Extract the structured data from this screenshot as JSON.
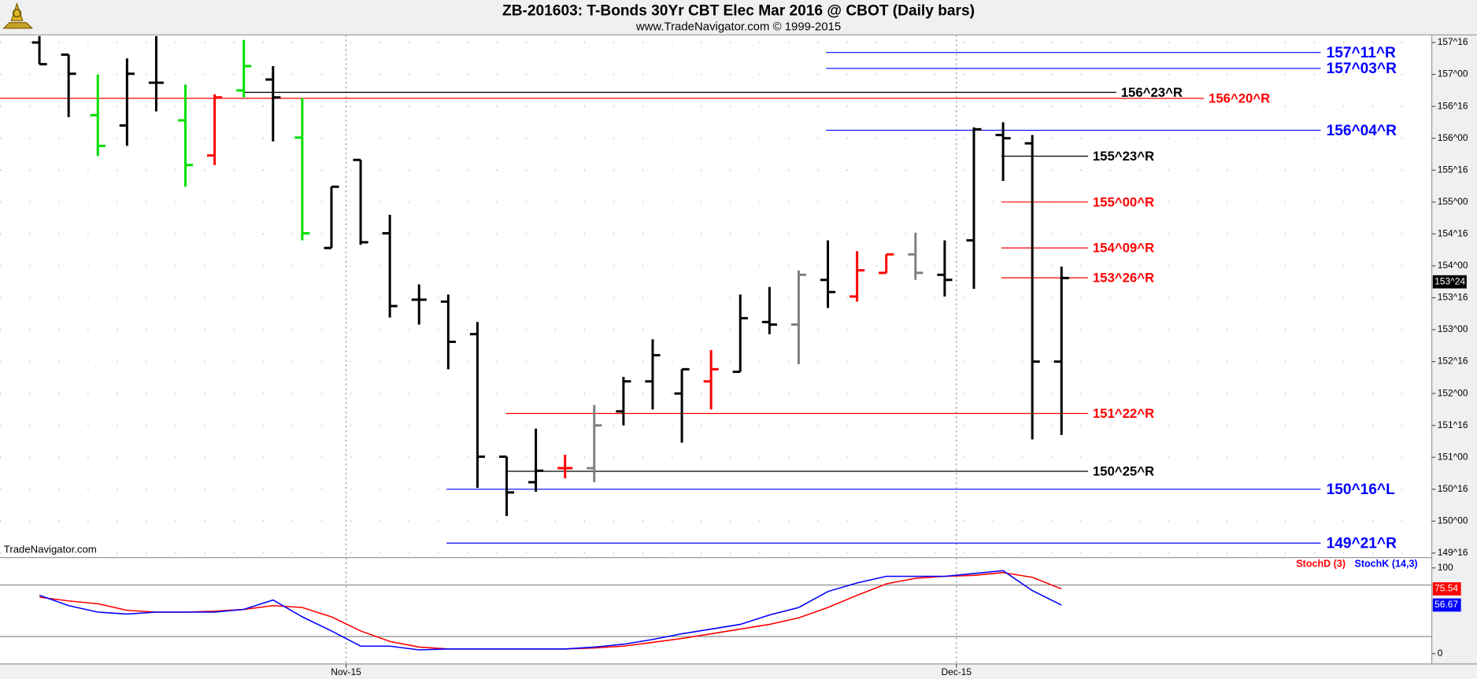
{
  "chart_data": [
    {
      "type": "ohlc",
      "title": "ZB-201603:  T-Bonds 30Yr CBT Elec Mar 2016 @ CBOT  (Daily bars)",
      "subtitle": "www.TradeNavigator.com © 1999-2015",
      "watermark": "TradeNavigator.com",
      "xlim": [
        -1.35,
        47.68
      ],
      "ylim": [
        149.43,
        157.62
      ],
      "yticks": [
        {
          "value": 149.5,
          "label": "149^16"
        },
        {
          "value": 150,
          "label": "150^00"
        },
        {
          "value": 150.5,
          "label": "150^16"
        },
        {
          "value": 151,
          "label": "151^00"
        },
        {
          "value": 151.5,
          "label": "151^16"
        },
        {
          "value": 152,
          "label": "152^00"
        },
        {
          "value": 152.5,
          "label": "152^16"
        },
        {
          "value": 153,
          "label": "153^00"
        },
        {
          "value": 153.5,
          "label": "153^16"
        },
        {
          "value": 154,
          "label": "154^00"
        },
        {
          "value": 154.5,
          "label": "154^16"
        },
        {
          "value": 155,
          "label": "155^00"
        },
        {
          "value": 155.5,
          "label": "155^16"
        },
        {
          "value": 156,
          "label": "156^00"
        },
        {
          "value": 156.5,
          "label": "156^16"
        },
        {
          "value": 157,
          "label": "157^00"
        },
        {
          "value": 157.5,
          "label": "157^16"
        }
      ],
      "grid": true,
      "open": [
        157.5,
        157.31,
        156.36,
        156.2,
        156.87,
        156.28,
        155.73,
        156.75,
        156.92,
        156.01,
        154.28,
        155.66,
        154.51,
        153.47,
        153.44,
        152.93,
        151.01,
        150.61,
        150.83,
        150.83,
        151.72,
        152.19,
        152.0,
        152.19,
        152.34,
        153.12,
        153.08,
        153.78,
        153.52,
        153.89,
        154.18,
        153.86,
        154.4,
        156.05,
        155.92,
        152.5
      ],
      "high": [
        157.6,
        157.31,
        157.0,
        157.25,
        157.6,
        156.84,
        156.69,
        157.54,
        157.13,
        156.63,
        155.24,
        155.66,
        154.8,
        153.71,
        153.55,
        153.12,
        151.01,
        151.45,
        151.04,
        151.82,
        152.26,
        152.85,
        152.38,
        152.68,
        153.55,
        153.67,
        153.93,
        154.4,
        154.23,
        154.18,
        154.52,
        154.4,
        156.17,
        156.25,
        156.05,
        153.99
      ],
      "low": [
        157.16,
        156.33,
        155.72,
        155.88,
        156.42,
        155.24,
        155.58,
        156.64,
        155.95,
        154.4,
        154.28,
        154.33,
        153.19,
        153.08,
        152.38,
        150.52,
        150.08,
        150.46,
        150.67,
        150.61,
        151.5,
        151.75,
        151.23,
        151.75,
        152.34,
        152.93,
        152.46,
        153.34,
        153.44,
        153.89,
        153.78,
        153.52,
        153.64,
        155.33,
        151.28,
        151.35
      ],
      "close": [
        157.16,
        157.01,
        155.88,
        157.01,
        156.87,
        155.58,
        156.64,
        157.13,
        156.64,
        154.51,
        155.24,
        154.37,
        153.37,
        153.47,
        152.81,
        151.01,
        150.45,
        150.79,
        150.83,
        151.5,
        152.19,
        152.6,
        152.38,
        152.38,
        153.18,
        153.08,
        153.86,
        153.59,
        153.93,
        154.18,
        153.89,
        153.78,
        156.14,
        156.0,
        152.5,
        153.81
      ],
      "colors": [
        "#000000",
        "#000000",
        "#00e000",
        "#000000",
        "#000000",
        "#00e000",
        "#ff0000",
        "#00e000",
        "#000000",
        "#00e000",
        "#000000",
        "#000000",
        "#000000",
        "#000000",
        "#000000",
        "#000000",
        "#000000",
        "#000000",
        "#ff0000",
        "#808080",
        "#000000",
        "#000000",
        "#000000",
        "#ff0000",
        "#000000",
        "#000000",
        "#808080",
        "#000000",
        "#ff0000",
        "#ff0000",
        "#808080",
        "#000000",
        "#000000",
        "#000000",
        "#000000",
        "#000000"
      ],
      "last": {
        "value": 153.75,
        "label": "153^24"
      },
      "levels": [
        {
          "value": 157.344,
          "label": "157^11^R",
          "color": "#0000ff"
        },
        {
          "value": 157.094,
          "label": "157^03^R",
          "color": "#0000ff"
        },
        {
          "value": 156.719,
          "label": "156^23^R",
          "color": "#000000"
        },
        {
          "value": 156.625,
          "label": "156^20^R",
          "color": "#ff0000"
        },
        {
          "value": 156.125,
          "label": "156^04^R",
          "color": "#0000ff"
        },
        {
          "value": 155.719,
          "label": "155^23^R",
          "color": "#000000"
        },
        {
          "value": 155,
          "label": "155^00^R",
          "color": "#ff0000"
        },
        {
          "value": 154.281,
          "label": "154^09^R",
          "color": "#ff0000"
        },
        {
          "value": 153.8125,
          "label": "153^26^R",
          "color": "#ff0000"
        },
        {
          "value": 151.6875,
          "label": "151^22^R",
          "color": "#ff0000"
        },
        {
          "value": 150.781,
          "label": "150^25^R",
          "color": "#000000"
        },
        {
          "value": 150.5,
          "label": "150^16^L",
          "color": "#0000ff"
        },
        {
          "value": 149.656,
          "label": "149^21^R",
          "color": "#0000ff"
        }
      ]
    },
    {
      "type": "line",
      "xlim": [
        -1.35,
        47.68
      ],
      "ylim": [
        -12,
        111
      ],
      "yticks": [
        0,
        100
      ],
      "levels": [
        20,
        80
      ],
      "xticks": [
        {
          "value": 10.5,
          "label": "Nov-15"
        },
        {
          "value": 31.4,
          "label": "Dec-15"
        }
      ],
      "series": [
        {
          "name": "StochD (3)",
          "color": "#ff0000",
          "values": [
            65.9,
            61.5,
            58.2,
            50.5,
            48.4,
            48.4,
            49.5,
            51.6,
            56.0,
            53.8,
            42.9,
            26.4,
            14.3,
            7.7,
            5.5,
            5.5,
            5.5,
            5.5,
            5.5,
            6.6,
            8.8,
            13.2,
            17.6,
            23.1,
            28.6,
            34.1,
            41.8,
            53.8,
            68.1,
            81.3,
            87.9,
            90.1,
            91.2,
            94.5,
            89.0,
            75.54
          ]
        },
        {
          "name": "StochK (14,3)",
          "color": "#0000ff",
          "values": [
            68.1,
            56.0,
            48.4,
            46.2,
            48.4,
            48.4,
            48.4,
            51.6,
            62.6,
            42.9,
            26.4,
            8.8,
            8.8,
            4.4,
            5.5,
            5.5,
            5.5,
            5.5,
            5.5,
            7.7,
            11.0,
            16.5,
            23.1,
            28.6,
            34.1,
            45.1,
            53.8,
            72.5,
            82.4,
            90.1,
            90.1,
            90.1,
            93.4,
            96.7,
            73.6,
            56.67
          ]
        }
      ]
    }
  ]
}
